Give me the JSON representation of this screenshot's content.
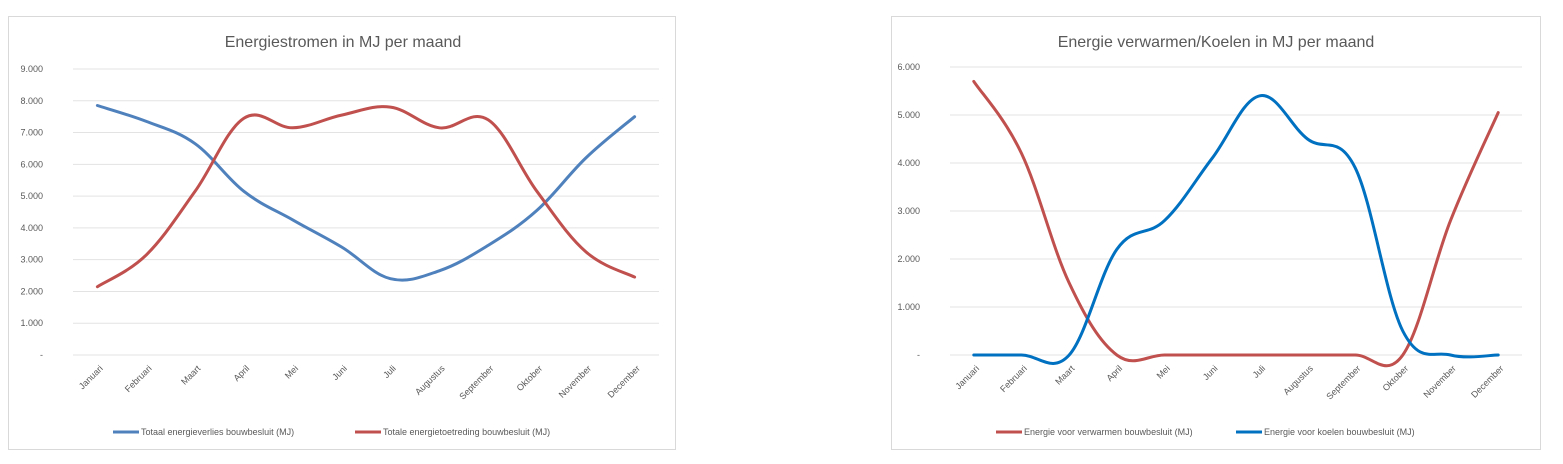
{
  "chart_data": [
    {
      "type": "line",
      "title": "Energiestromen in MJ per maand",
      "categories": [
        "Januari",
        "Februari",
        "Maart",
        "April",
        "Mei",
        "Juni",
        "Juli",
        "Augustus",
        "September",
        "Oktober",
        "November",
        "December"
      ],
      "y_ticks": [
        "-",
        "1.000",
        "2.000",
        "3.000",
        "4.000",
        "5.000",
        "6.000",
        "7.000",
        "8.000",
        "9.000"
      ],
      "ylim": [
        0,
        9000
      ],
      "grid": true,
      "legend_position": "bottom",
      "series": [
        {
          "name": "Totaal energieverlies bouwbesluit (MJ)",
          "color": "#4f81bd",
          "values": [
            7850,
            7350,
            6650,
            5150,
            4250,
            3400,
            2400,
            2650,
            3450,
            4550,
            6200,
            7500
          ]
        },
        {
          "name": "Totale energietoetreding bouwbesluit (MJ)",
          "color": "#c0504d",
          "values": [
            2150,
            3150,
            5150,
            7450,
            7150,
            7550,
            7800,
            7150,
            7400,
            5150,
            3250,
            2450
          ]
        }
      ]
    },
    {
      "type": "line",
      "title": "Energie verwarmen/Koelen in MJ per maand",
      "categories": [
        "Januari",
        "Februari",
        "Maart",
        "April",
        "Mei",
        "Juni",
        "Juli",
        "Augustus",
        "September",
        "Oktober",
        "November",
        "December"
      ],
      "y_ticks": [
        "-",
        "1.000",
        "2.000",
        "3.000",
        "4.000",
        "5.000",
        "6.000"
      ],
      "ylim": [
        0,
        6000
      ],
      "grid": true,
      "legend_position": "bottom",
      "series": [
        {
          "name": "Energie voor verwarmen bouwbesluit (MJ)",
          "color": "#c0504d",
          "values": [
            5700,
            4200,
            1500,
            0,
            0,
            0,
            0,
            0,
            0,
            0,
            2800,
            5050
          ]
        },
        {
          "name": "Energie voor koelen bouwbesluit (MJ)",
          "color": "#0070c0",
          "values": [
            0,
            0,
            0,
            2200,
            2800,
            4100,
            5400,
            4500,
            3900,
            500,
            0,
            0
          ]
        }
      ]
    }
  ]
}
